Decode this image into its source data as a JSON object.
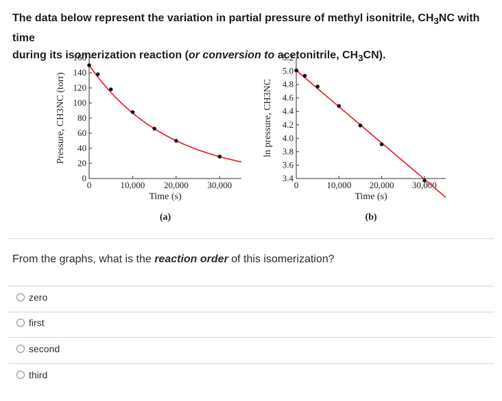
{
  "question_intro": {
    "line1_a": "The data below represent the variation in partial pressure of methyl isonitrile, CH",
    "line1_sub": "3",
    "line1_b": "NC with time",
    "line2_a": "during its isomerization reaction (",
    "line2_em": "or conversion to",
    "line2_b": " acetonitrile, CH",
    "line2_sub": "3",
    "line2_c": "CN)."
  },
  "chart_data": [
    {
      "type": "line",
      "panel_label": "(a)",
      "ylabel": "Pressure, CH3NC (torr)",
      "xlabel": "Time (s)",
      "xlim": [
        0,
        35000
      ],
      "ylim": [
        0,
        160
      ],
      "xticks": [
        0,
        10000,
        20000,
        30000
      ],
      "xtick_labels": [
        "0",
        "10,000",
        "20,000",
        "30,000"
      ],
      "yticks": [
        0,
        20,
        40,
        60,
        80,
        100,
        120,
        140,
        160
      ],
      "ytick_labels": [
        "0",
        "20",
        "40",
        "60",
        "80",
        "100",
        "120",
        "140",
        "160"
      ],
      "points": {
        "x": [
          0,
          2000,
          5000,
          10000,
          15000,
          20000,
          30000
        ],
        "y": [
          150,
          138,
          118,
          88,
          66,
          50,
          29
        ]
      },
      "curve": {
        "x": [
          0,
          35000
        ],
        "y": [
          150,
          22
        ]
      },
      "point_color": "#111111",
      "line_color": "#e8303a"
    },
    {
      "type": "line",
      "panel_label": "(b)",
      "ylabel": "ln pressure, CH3NC",
      "xlabel": "Time (s)",
      "xlim": [
        0,
        35000
      ],
      "ylim": [
        3.4,
        5.2
      ],
      "xticks": [
        0,
        10000,
        20000,
        30000
      ],
      "xtick_labels": [
        "0",
        "10,000",
        "20,000",
        "30,000"
      ],
      "yticks": [
        3.4,
        3.6,
        3.8,
        4.0,
        4.2,
        4.4,
        4.6,
        4.8,
        5.0,
        5.2
      ],
      "ytick_labels": [
        "3.4",
        "3.6",
        "3.8",
        "4.0",
        "4.2",
        "4.4",
        "4.6",
        "4.8",
        "5.0",
        "5.2"
      ],
      "points": {
        "x": [
          0,
          2000,
          5000,
          10000,
          15000,
          20000,
          30000
        ],
        "y": [
          5.01,
          4.93,
          4.77,
          4.48,
          4.19,
          3.91,
          3.37
        ]
      },
      "curve": {
        "x": [
          0,
          35000
        ],
        "y": [
          5.01,
          3.12
        ]
      },
      "point_color": "#111111",
      "line_color": "#e8303a"
    }
  ],
  "question": {
    "a": "From the graphs, what is the ",
    "b": "reaction order",
    "c": " of this isomerization?"
  },
  "options": [
    "zero",
    "first",
    "second",
    "third"
  ]
}
